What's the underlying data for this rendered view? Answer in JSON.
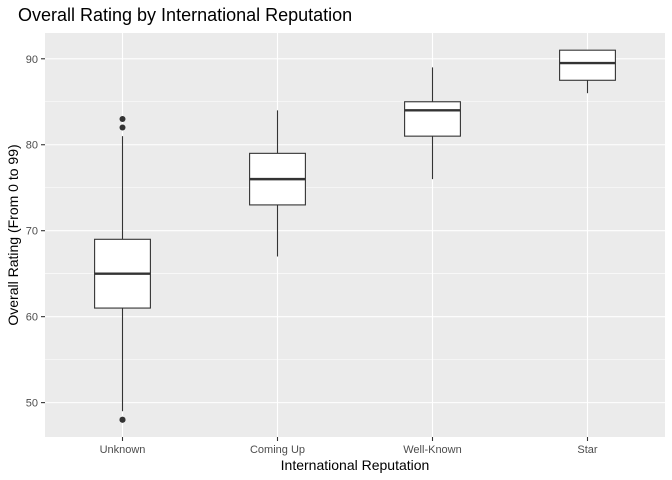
{
  "chart_data": {
    "type": "boxplot",
    "title": "Overall Rating by International Reputation",
    "xlabel": "International Reputation",
    "ylabel": "Overall Rating (From 0 to 99)",
    "categories": [
      "Unknown",
      "Coming Up",
      "Well-Known",
      "Star"
    ],
    "boxes": [
      {
        "category": "Unknown",
        "whisker_low": 49,
        "q1": 61,
        "median": 65,
        "q3": 69,
        "whisker_high": 81,
        "outliers": [
          48,
          48,
          82,
          83
        ]
      },
      {
        "category": "Coming Up",
        "whisker_low": 67,
        "q1": 73,
        "median": 76,
        "q3": 79,
        "whisker_high": 84,
        "outliers": []
      },
      {
        "category": "Well-Known",
        "whisker_low": 76,
        "q1": 81,
        "median": 84,
        "q3": 85,
        "whisker_high": 89,
        "outliers": []
      },
      {
        "category": "Star",
        "whisker_low": 86,
        "q1": 87.5,
        "median": 89.5,
        "q3": 91,
        "whisker_high": 91,
        "outliers": []
      }
    ],
    "ylim": [
      46,
      93
    ],
    "yticks": [
      50,
      60,
      70,
      80,
      90
    ],
    "ytick_labels": [
      "50",
      "60",
      "70",
      "80",
      "90"
    ],
    "grid": true,
    "legend": "none",
    "colors": {
      "panel_background": "#ebebeb",
      "grid_major": "#ffffff",
      "box_fill": "#ffffff",
      "box_line": "#333333",
      "outlier": "#333333"
    }
  }
}
